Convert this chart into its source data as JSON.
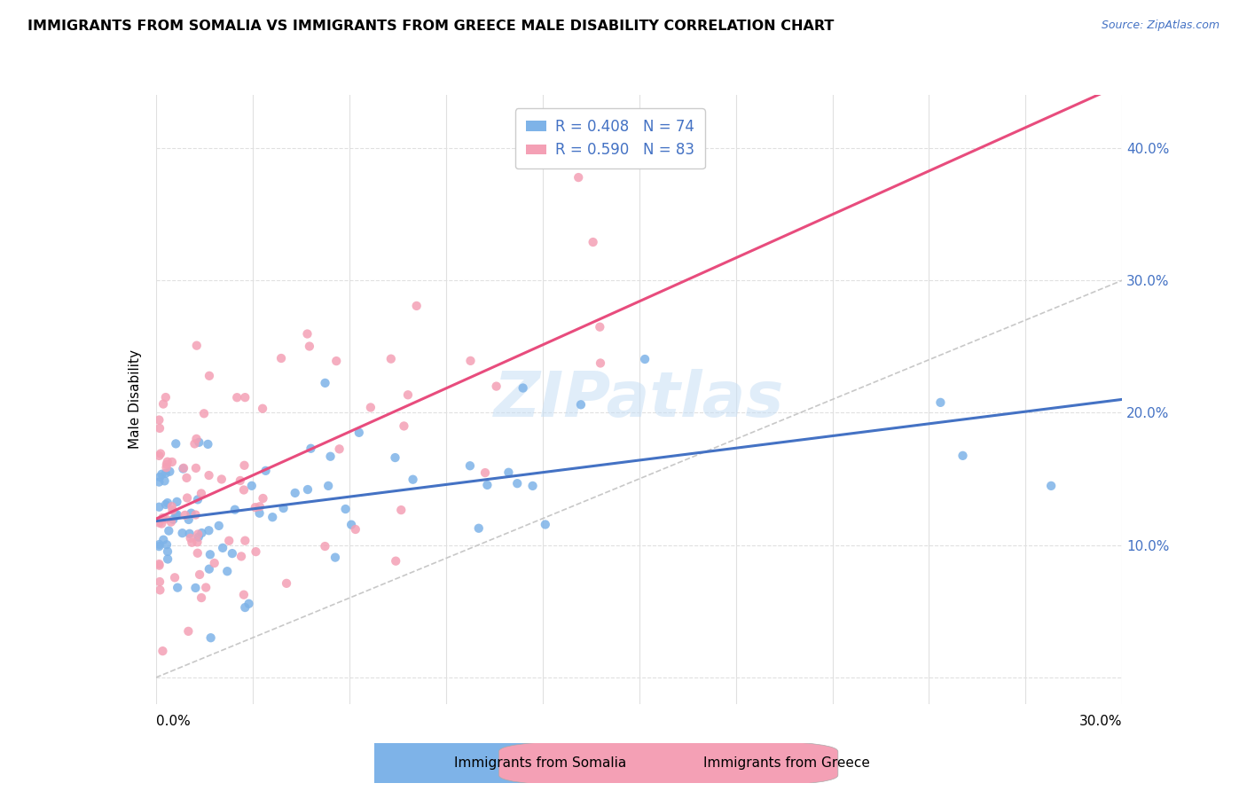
{
  "title": "IMMIGRANTS FROM SOMALIA VS IMMIGRANTS FROM GREECE MALE DISABILITY CORRELATION CHART",
  "source": "Source: ZipAtlas.com",
  "ylabel": "Male Disability",
  "xlim": [
    0.0,
    0.3
  ],
  "ylim": [
    -0.02,
    0.44
  ],
  "somalia_R": 0.408,
  "somalia_N": 74,
  "greece_R": 0.59,
  "greece_N": 83,
  "somalia_color": "#7EB3E8",
  "greece_color": "#F4A0B5",
  "somalia_line_color": "#4472C4",
  "greece_line_color": "#E84C7D",
  "diagonal_color": "#C8C8C8",
  "background_color": "#FFFFFF",
  "grid_color": "#E0E0E0",
  "legend_somalia": "Immigrants from Somalia",
  "legend_greece": "Immigrants from Greece"
}
